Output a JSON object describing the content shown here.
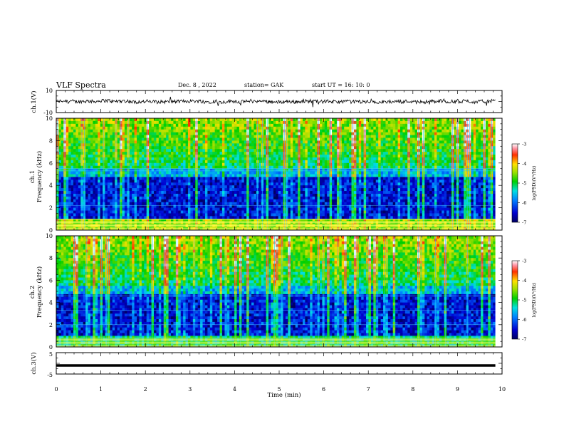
{
  "header": {
    "title": "VLF Spectra",
    "date": "Dec. 8 , 2022",
    "station": "station= GAK",
    "start_ut": "start UT =  16: 10: 0"
  },
  "chart_data": [
    {
      "type": "line",
      "name": "ch1-waveform",
      "ylabel": "ch.1(V)",
      "ylim": [
        -10,
        10
      ],
      "y_tick_labels": [
        "10",
        "-10"
      ],
      "xlim": [
        0,
        10
      ],
      "waveform_baseline": 0,
      "data_end_min": 9.85
    },
    {
      "type": "heatmap",
      "name": "ch1-spectrogram",
      "ylabel": "ch.1\nFrequency (kHz)",
      "ylim": [
        0,
        10
      ],
      "y_tick_labels": [
        "0",
        "2",
        "4",
        "6",
        "8",
        "10"
      ],
      "xlim": [
        0,
        10
      ],
      "data_end_min": 9.85,
      "colorbar": {
        "label": "log(PSD)(V²/Hz)",
        "range": [
          -7,
          -3
        ],
        "tick_labels": [
          "-3",
          "-4",
          "-5",
          "-6",
          "-7"
        ]
      },
      "hum_lines_khz": [
        0.06,
        0.18,
        0.3,
        0.42,
        0.54,
        0.66,
        0.78,
        0.96,
        2.2,
        5.3,
        5.5
      ]
    },
    {
      "type": "heatmap",
      "name": "ch2-spectrogram",
      "ylabel": "ch.2\nFrequency (kHz)",
      "ylim": [
        0,
        10
      ],
      "y_tick_labels": [
        "0",
        "2",
        "4",
        "6",
        "8",
        "10"
      ],
      "xlim": [
        0,
        10
      ],
      "data_end_min": 9.85,
      "colorbar": {
        "label": "log(PSD)(V²/Hz)",
        "range": [
          -7,
          -3
        ],
        "tick_labels": [
          "-3",
          "-4",
          "-5",
          "-6",
          "-7"
        ]
      },
      "hum_lines_khz": [
        0.06,
        0.18,
        0.3,
        0.42,
        0.54,
        0.66,
        0.78,
        2.0,
        3.3,
        4.6
      ]
    },
    {
      "type": "line",
      "name": "ch3-waveform",
      "ylabel": "ch.3(V)",
      "ylim": [
        -5,
        5
      ],
      "y_tick_labels": [
        "5",
        "-5"
      ],
      "xlim": [
        0,
        10
      ],
      "xlabel": "Time (min)",
      "x_tick_labels": [
        "0",
        "1",
        "2",
        "3",
        "4",
        "5",
        "6",
        "7",
        "8",
        "9",
        "10"
      ],
      "constant_value": -1,
      "data_end_min": 9.85
    }
  ]
}
